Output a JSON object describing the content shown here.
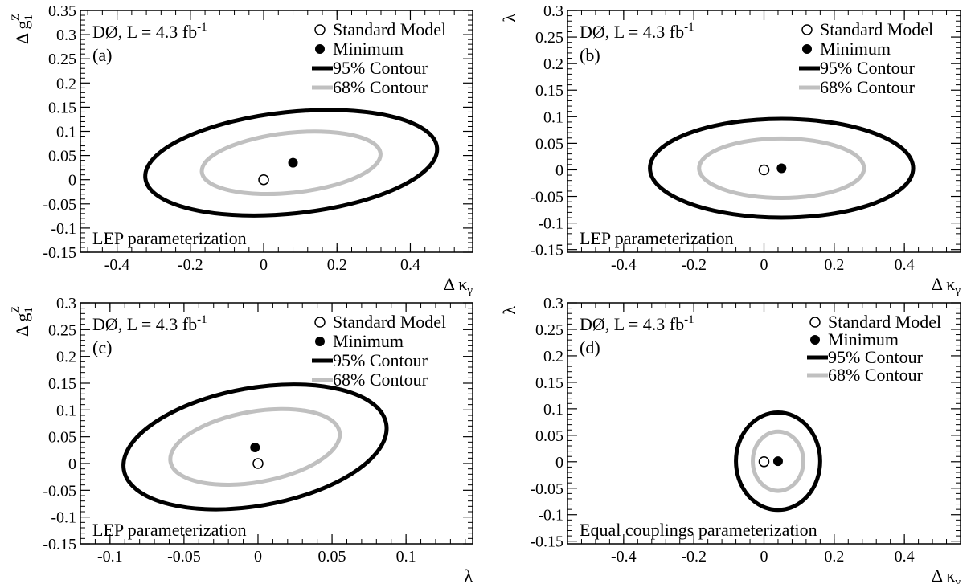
{
  "chart_data": [
    {
      "panel": "(a)",
      "type": "contour",
      "experiment": "DØ, L = 4.3 fb",
      "lumi_exp": "-1",
      "tag": "(a)",
      "parameterization": "LEP parameterization",
      "xlabel": {
        "main": "Δ κ",
        "sub": "γ"
      },
      "ylabel": {
        "main": "Δ g",
        "sub": "1",
        "sup": "Z"
      },
      "xlim": [
        -0.5,
        0.57
      ],
      "ylim": [
        -0.15,
        0.35
      ],
      "x_ticks": [
        -0.4,
        -0.2,
        0,
        0.2,
        0.4
      ],
      "x_tick_labels": [
        "-0.4",
        "-0.2",
        "0",
        "0.2",
        "0.4"
      ],
      "y_ticks": [
        -0.15,
        -0.1,
        -0.05,
        0,
        0.05,
        0.1,
        0.15,
        0.2,
        0.25,
        0.3,
        0.35
      ],
      "y_tick_labels": [
        "-0.15",
        "-0.1",
        "-0.05",
        "0",
        "0.05",
        "0.1",
        "0.15",
        "0.2",
        "0.25",
        "0.3",
        "0.35"
      ],
      "standard_model": [
        0,
        0
      ],
      "minimum": [
        0.08,
        0.035
      ],
      "contours": [
        {
          "level": "95% Contour",
          "color": "#000000",
          "cx": 0.075,
          "cy": 0.035,
          "rx": 0.4,
          "ry": 0.105,
          "angle_deg": -6
        },
        {
          "level": "68% Contour",
          "color": "#c0c0c0",
          "cx": 0.075,
          "cy": 0.035,
          "rx": 0.245,
          "ry": 0.062,
          "angle_deg": -6
        }
      ]
    },
    {
      "panel": "(b)",
      "type": "contour",
      "experiment": "DØ, L = 4.3 fb",
      "lumi_exp": "-1",
      "tag": "(b)",
      "parameterization": "LEP parameterization",
      "xlabel": {
        "main": "Δ κ",
        "sub": "γ"
      },
      "ylabel": {
        "main": "λ"
      },
      "xlim": [
        -0.56,
        0.56
      ],
      "ylim": [
        -0.155,
        0.3
      ],
      "x_ticks": [
        -0.4,
        -0.2,
        0,
        0.2,
        0.4
      ],
      "x_tick_labels": [
        "-0.4",
        "-0.2",
        "0",
        "0.2",
        "0.4"
      ],
      "y_ticks": [
        -0.15,
        -0.1,
        -0.05,
        0,
        0.05,
        0.1,
        0.15,
        0.2,
        0.25,
        0.3
      ],
      "y_tick_labels": [
        "-0.15",
        "-0.1",
        "-0.05",
        "0",
        "0.05",
        "0.1",
        "0.15",
        "0.2",
        "0.25",
        "0.3"
      ],
      "standard_model": [
        0,
        0
      ],
      "minimum": [
        0.05,
        0.003
      ],
      "contours": [
        {
          "level": "95% Contour",
          "color": "#000000",
          "cx": 0.05,
          "cy": 0.003,
          "rx": 0.375,
          "ry": 0.093,
          "angle_deg": 0
        },
        {
          "level": "68% Contour",
          "color": "#c0c0c0",
          "cx": 0.05,
          "cy": 0.003,
          "rx": 0.235,
          "ry": 0.056,
          "angle_deg": 0
        }
      ]
    },
    {
      "panel": "(c)",
      "type": "contour",
      "experiment": "DØ, L = 4.3 fb",
      "lumi_exp": "-1",
      "tag": "(c)",
      "parameterization": "LEP parameterization",
      "xlabel": {
        "main": "λ"
      },
      "ylabel": {
        "main": "Δ g",
        "sub": "1",
        "sup": "Z"
      },
      "xlim": [
        -0.12,
        0.145
      ],
      "ylim": [
        -0.15,
        0.3
      ],
      "x_ticks": [
        -0.1,
        -0.05,
        0,
        0.05,
        0.1
      ],
      "x_tick_labels": [
        "-0.1",
        "-0.05",
        "0",
        "0.05",
        "0.1"
      ],
      "y_ticks": [
        -0.15,
        -0.1,
        -0.05,
        0,
        0.05,
        0.1,
        0.15,
        0.2,
        0.25,
        0.3
      ],
      "y_tick_labels": [
        "-0.15",
        "-0.1",
        "-0.05",
        "0",
        "0.05",
        "0.1",
        "0.15",
        "0.2",
        "0.25",
        "0.3"
      ],
      "standard_model": [
        0,
        0
      ],
      "minimum": [
        -0.002,
        0.03
      ],
      "contours": [
        {
          "level": "95% Contour",
          "color": "#000000",
          "cx": -0.002,
          "cy": 0.031,
          "rx": 0.09,
          "ry": 0.11,
          "angle_deg": -10
        },
        {
          "level": "68% Contour",
          "color": "#c0c0c0",
          "cx": -0.002,
          "cy": 0.031,
          "rx": 0.058,
          "ry": 0.066,
          "angle_deg": -10
        }
      ]
    },
    {
      "panel": "(d)",
      "type": "contour",
      "experiment": "DØ, L = 4.3 fb",
      "lumi_exp": "-1",
      "tag": "(d)",
      "parameterization": "Equal couplings parameterization",
      "xlabel": {
        "main": "Δ κ",
        "sub": "γ"
      },
      "ylabel": {
        "main": "λ"
      },
      "xlim": [
        -0.56,
        0.56
      ],
      "ylim": [
        -0.155,
        0.3
      ],
      "x_ticks": [
        -0.4,
        -0.2,
        0,
        0.2,
        0.4
      ],
      "x_tick_labels": [
        "-0.4",
        "-0.2",
        "0",
        "0.2",
        "0.4"
      ],
      "y_ticks": [
        -0.15,
        -0.1,
        -0.05,
        0,
        0.05,
        0.1,
        0.15,
        0.2,
        0.25,
        0.3
      ],
      "y_tick_labels": [
        "-0.15",
        "-0.1",
        "-0.05",
        "0",
        "0.05",
        "0.1",
        "0.15",
        "0.2",
        "0.25",
        "0.3"
      ],
      "standard_model": [
        0,
        0
      ],
      "minimum": [
        0.04,
        0.001
      ],
      "contours": [
        {
          "level": "95% Contour",
          "color": "#000000",
          "cx": 0.04,
          "cy": 0.001,
          "rx": 0.12,
          "ry": 0.092,
          "angle_deg": 0
        },
        {
          "level": "68% Contour",
          "color": "#c0c0c0",
          "cx": 0.04,
          "cy": 0.001,
          "rx": 0.072,
          "ry": 0.056,
          "angle_deg": 0
        }
      ]
    }
  ],
  "legend": {
    "standard_model": "Standard Model",
    "minimum": "Minimum",
    "contour95": "95% Contour",
    "contour68": "68% Contour"
  }
}
